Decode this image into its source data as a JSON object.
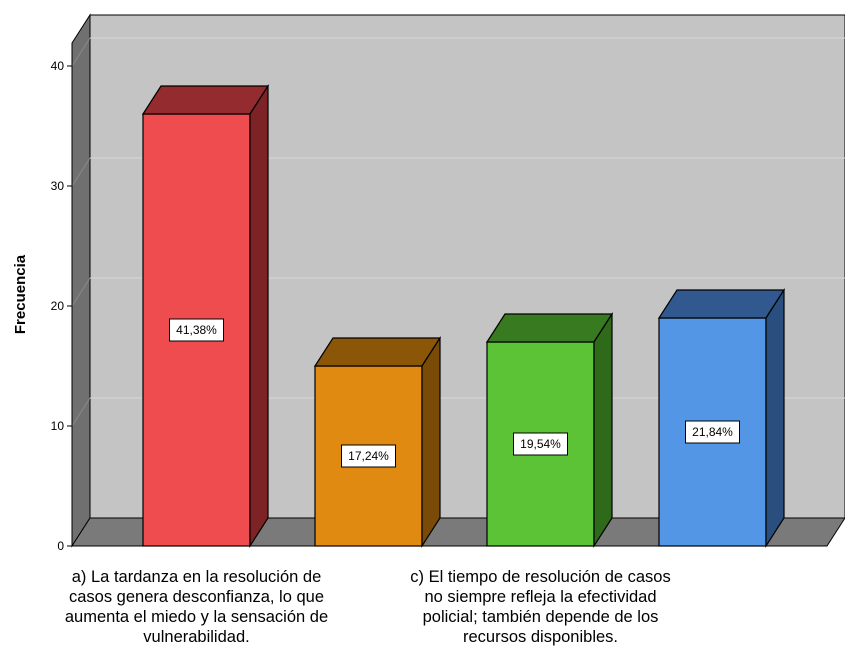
{
  "chart_data": {
    "type": "bar",
    "style": "3d",
    "categories": [
      [
        "a) La tardanza en la resolución de",
        "casos genera desconfianza, lo que",
        "aumenta el miedo y la sensación de",
        "vulnerabilidad."
      ],
      [],
      [
        "c) El tiempo de resolución de casos",
        "no siempre refleja la efectividad",
        "policial; también depende de los",
        "recursos disponibles."
      ],
      []
    ],
    "values": [
      36,
      15,
      17,
      19
    ],
    "data_labels": [
      "41,38%",
      "17,24%",
      "19,54%",
      "21,84%"
    ],
    "bar_colors": [
      {
        "front": "#ee4c4f",
        "top": "#942b2e",
        "side": "#7d2326"
      },
      {
        "front": "#e18a12",
        "top": "#8c5609",
        "side": "#7a4a07"
      },
      {
        "front": "#5cc336",
        "top": "#387a1f",
        "side": "#2f6a1a"
      },
      {
        "front": "#5496e6",
        "top": "#31598f",
        "side": "#2a4e7e"
      }
    ],
    "wall_color": "#c4c4c4",
    "floor_color": "#7a7a7a",
    "ylabel": "Frecuencia",
    "ylim": [
      0,
      40
    ],
    "yticks": [
      0,
      10,
      20,
      30,
      40
    ],
    "grid": true,
    "legend": "none"
  }
}
